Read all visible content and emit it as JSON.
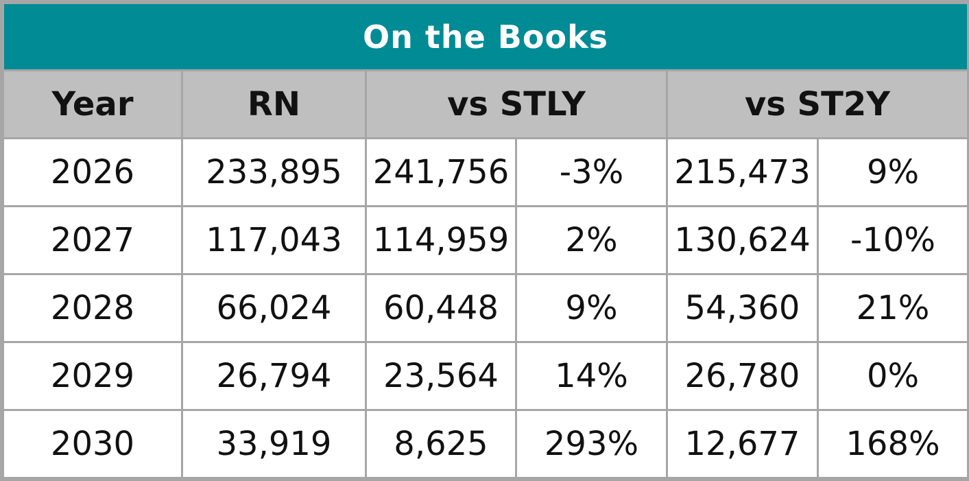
{
  "title": "On the Books",
  "headers": {
    "year": "Year",
    "rn": "RN",
    "vs_stly": "vs STLY",
    "vs_st2y": "vs ST2Y"
  },
  "colors": {
    "title_bg": "#008b95",
    "header_bg": "#bfbfbf",
    "border": "#a6a6a6",
    "negative": "#e60000"
  },
  "rows": [
    {
      "year": "2026",
      "rn": "233,895",
      "stly": "241,756",
      "stly_pct": "-3%",
      "st2y": "215,473",
      "st2y_pct": "9%"
    },
    {
      "year": "2027",
      "rn": "117,043",
      "stly": "114,959",
      "stly_pct": "2%",
      "st2y": "130,624",
      "st2y_pct": "-10%"
    },
    {
      "year": "2028",
      "rn": "66,024",
      "stly": "60,448",
      "stly_pct": "9%",
      "st2y": "54,360",
      "st2y_pct": "21%"
    },
    {
      "year": "2029",
      "rn": "26,794",
      "stly": "23,564",
      "stly_pct": "14%",
      "st2y": "26,780",
      "st2y_pct": "0%"
    },
    {
      "year": "2030",
      "rn": "33,919",
      "stly": "8,625",
      "stly_pct": "293%",
      "st2y": "12,677",
      "st2y_pct": "168%"
    }
  ]
}
